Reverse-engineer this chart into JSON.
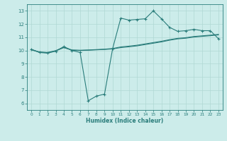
{
  "x": [
    0,
    1,
    2,
    3,
    4,
    5,
    6,
    7,
    8,
    9,
    10,
    11,
    12,
    13,
    14,
    15,
    16,
    17,
    18,
    19,
    20,
    21,
    22,
    23
  ],
  "line_jagged": [
    10.1,
    9.85,
    9.8,
    9.95,
    10.3,
    10.0,
    9.85,
    6.2,
    6.55,
    6.7,
    10.15,
    12.45,
    12.3,
    12.35,
    12.4,
    13.0,
    12.4,
    11.75,
    11.45,
    11.5,
    11.6,
    11.5,
    11.5,
    10.9
  ],
  "line_trend1": [
    10.05,
    9.87,
    9.83,
    9.97,
    10.22,
    10.02,
    10.0,
    10.02,
    10.05,
    10.08,
    10.12,
    10.22,
    10.28,
    10.35,
    10.45,
    10.55,
    10.65,
    10.78,
    10.88,
    10.93,
    11.02,
    11.07,
    11.12,
    11.18
  ],
  "line_trend2": [
    10.07,
    9.89,
    9.85,
    9.99,
    10.24,
    10.04,
    10.02,
    10.04,
    10.07,
    10.1,
    10.15,
    10.27,
    10.33,
    10.4,
    10.5,
    10.6,
    10.7,
    10.82,
    10.92,
    10.97,
    11.06,
    11.11,
    11.16,
    11.22
  ],
  "xlabel": "Humidex (Indice chaleur)",
  "ylim": [
    5.5,
    13.5
  ],
  "xlim": [
    -0.5,
    23.5
  ],
  "yticks": [
    6,
    7,
    8,
    9,
    10,
    11,
    12,
    13
  ],
  "xticks": [
    0,
    1,
    2,
    3,
    4,
    5,
    6,
    7,
    8,
    9,
    10,
    11,
    12,
    13,
    14,
    15,
    16,
    17,
    18,
    19,
    20,
    21,
    22,
    23
  ],
  "line_color": "#2a7d7b",
  "bg_color": "#ccecea",
  "grid_color": "#b0d8d4"
}
